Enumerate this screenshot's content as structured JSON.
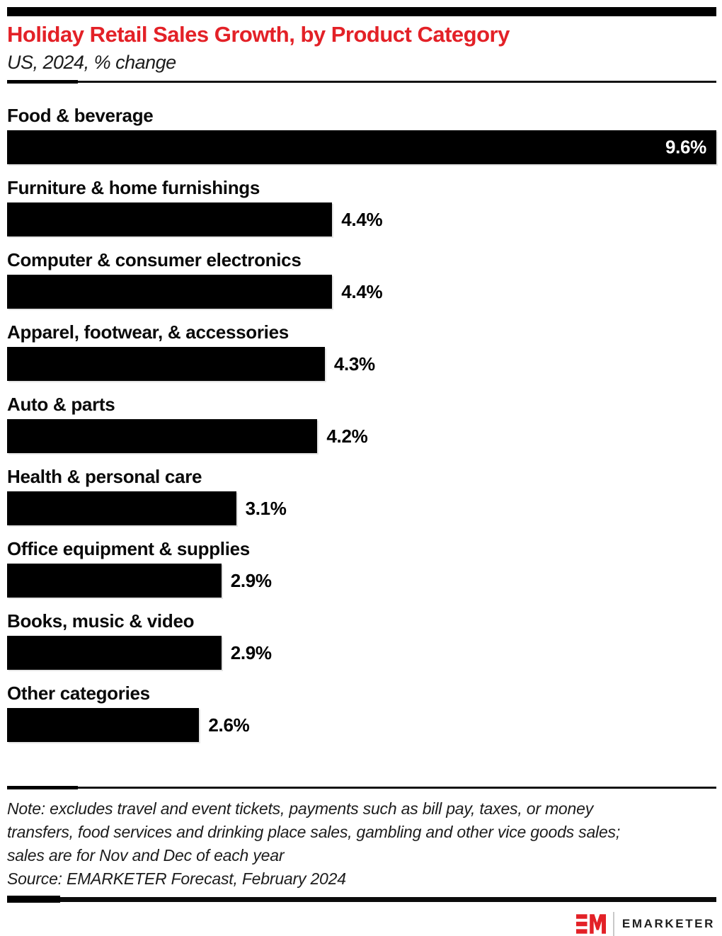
{
  "header": {
    "title": "Holiday Retail Sales Growth, by Product Category",
    "subtitle": "US, 2024, % change"
  },
  "chart_data": {
    "type": "bar",
    "orientation": "horizontal",
    "title": "Holiday Retail Sales Growth, by Product Category",
    "subtitle": "US, 2024, % change",
    "unit": "%",
    "xlim": [
      0,
      9.6
    ],
    "grid": false,
    "legend": false,
    "categories": [
      "Food & beverage",
      "Furniture & home furnishings",
      "Computer & consumer electronics",
      "Apparel, footwear, & accessories",
      "Auto & parts",
      "Health & personal care",
      "Office equipment & supplies",
      "Books, music & video",
      "Other categories"
    ],
    "values": [
      9.6,
      4.4,
      4.4,
      4.3,
      4.2,
      3.1,
      2.9,
      2.9,
      2.6
    ],
    "rows": [
      {
        "label": "Food & beverage",
        "value": 9.6,
        "value_label": "9.6%",
        "value_inside": true
      },
      {
        "label": "Furniture & home furnishings",
        "value": 4.4,
        "value_label": "4.4%",
        "value_inside": false
      },
      {
        "label": "Computer & consumer electronics",
        "value": 4.4,
        "value_label": "4.4%",
        "value_inside": false
      },
      {
        "label": "Apparel, footwear, & accessories",
        "value": 4.3,
        "value_label": "4.3%",
        "value_inside": false
      },
      {
        "label": "Auto & parts",
        "value": 4.2,
        "value_label": "4.2%",
        "value_inside": false
      },
      {
        "label": "Health & personal care",
        "value": 3.1,
        "value_label": "3.1%",
        "value_inside": false
      },
      {
        "label": "Office equipment & supplies",
        "value": 2.9,
        "value_label": "2.9%",
        "value_inside": false
      },
      {
        "label": "Books, music & video",
        "value": 2.9,
        "value_label": "2.9%",
        "value_inside": false
      },
      {
        "label": "Other categories",
        "value": 2.6,
        "value_label": "2.6%",
        "value_inside": false
      }
    ]
  },
  "footer": {
    "note": "Note: excludes travel and event tickets, payments such as bill pay, taxes, or money transfers, food services and drinking place sales, gambling and other vice goods sales; sales are for Nov and Dec of each year",
    "source": "Source: EMARKETER Forecast, February 2024"
  },
  "branding": {
    "logo_glyph": "EM",
    "brand_name": "EMARKETER"
  },
  "colors": {
    "brand_red": "#e32127",
    "bar_color": "#000000",
    "background": "#ffffff"
  }
}
